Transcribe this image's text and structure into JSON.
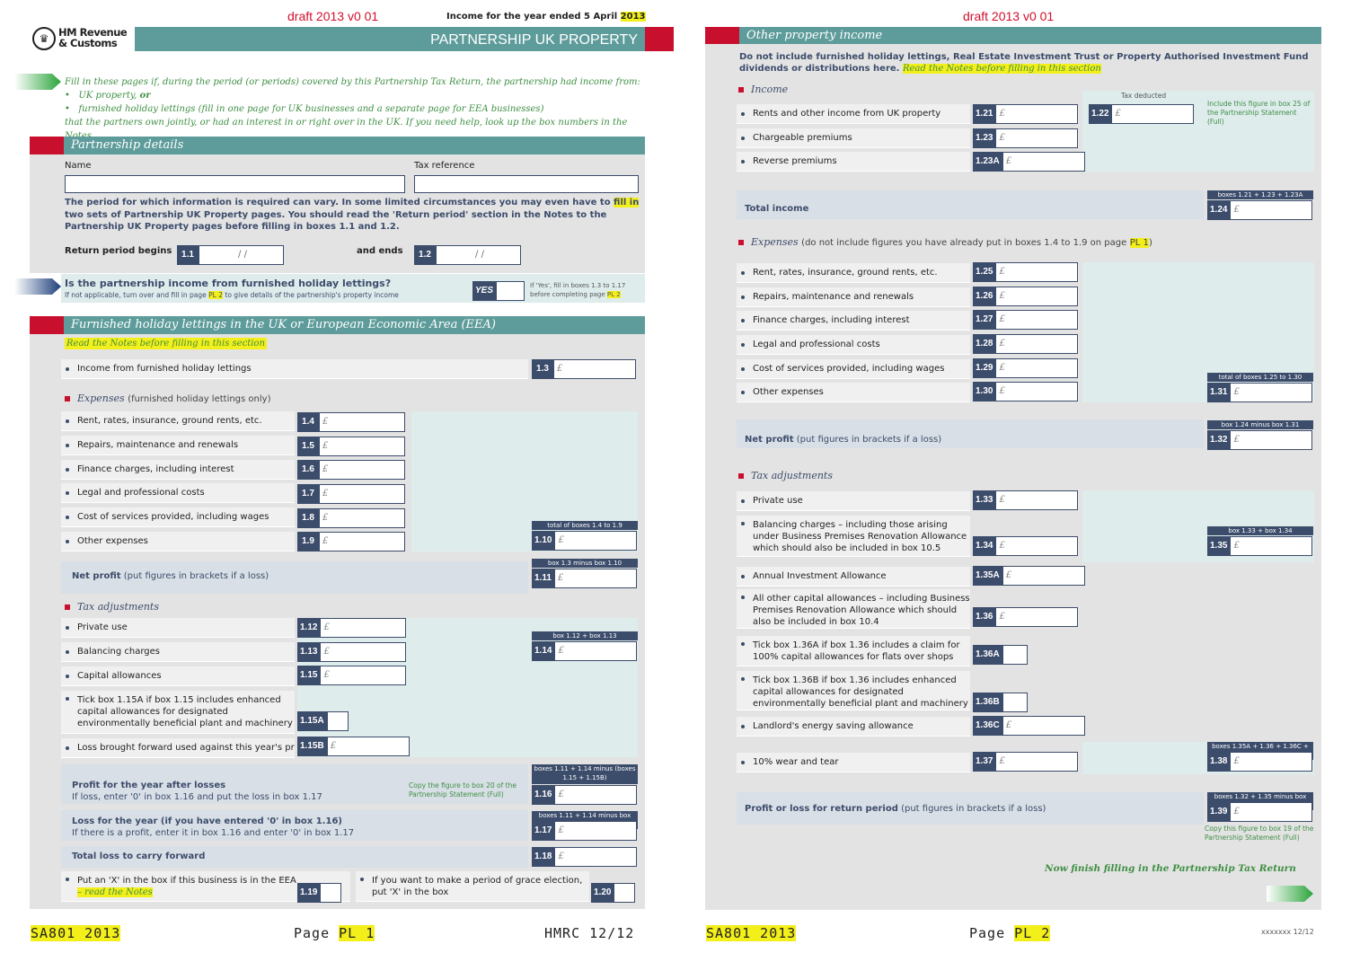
{
  "p1": {
    "draft": "draft 2013 v0 01",
    "year_text": "Income for the year ended 5 April",
    "year": "2013",
    "logo_line1": "HM Revenue",
    "logo_line2": "& Customs",
    "title": "PARTNERSHIP UK PROPERTY",
    "intro": "Fill in these pages if, during the period (or periods) covered by this Partnership Tax Return, the partnership had income from:",
    "bullet1": "UK property,",
    "bullet1_or": "or",
    "bullet2": "furnished holiday lettings (fill in one page for UK businesses and a separate page for EEA businesses)",
    "intro2": "that the partners own jointly, or had an interest in or right over in the UK. If you need help, look up the box numbers in the Notes.",
    "details_heading": "Partnership details",
    "name_label": "Name",
    "taxref_label": "Tax reference",
    "period_text_a": "The period for which information is required can vary. In some limited circumstances you may even have to",
    "period_fill": "fill in",
    "period_text_b": "two sets of Partnership UK Property pages. You should read the 'Return period' section in the Notes to the Partnership UK Property pages before filling in boxes 1.1 and 1.2.",
    "begins_label": "Return period begins",
    "ends_label": "and ends",
    "date_slash": "/          /",
    "fhl_q": "Is the partnership income from furnished holiday lettings?",
    "fhl_sub_a": "If not applicable, turn over and fill in page",
    "fhl_sub_pl": "PL 2",
    "fhl_sub_b": "to give details of the partnership's property income",
    "yes": "YES",
    "ifyes_a": "If 'Yes', fill in boxes 1.3 to 1.17",
    "ifyes_b": "before completing page",
    "ifyes_pl": "PL 2",
    "fhl_heading": "Furnished holiday lettings in the UK or European Economic Area (EEA)",
    "read_notes": "Read the Notes before filling in this section",
    "income_fhl": "Income from furnished holiday lettings",
    "expenses_h": "Expenses",
    "expenses_sub": "(furnished holiday lettings only)",
    "e1": "Rent, rates, insurance, ground rents, etc.",
    "e2": "Repairs, maintenance and renewals",
    "e3": "Finance charges, including interest",
    "e4": "Legal and professional costs",
    "e5": "Cost of services provided, including wages",
    "e6": "Other expenses",
    "total_cap": "total of boxes 1.4 to 1.9",
    "net_profit": "Net profit",
    "net_profit_sub": "(put figures in brackets if a loss)",
    "np_cap": "box 1.3 minus box 1.10",
    "tax_adj": "Tax adjustments",
    "t1": "Private use",
    "t2": "Balancing charges",
    "t3": "Capital allowances",
    "t4": "Tick box 1.15A if box 1.15 includes enhanced capital allowances for designated environmentally beneficial plant and machinery",
    "t5": "Loss brought forward used against this year's profits",
    "t_cap": "box 1.12 + box 1.13",
    "profit_after": "Profit for the year after losses",
    "profit_after_sub": "If loss, enter '0' in box 1.16 and put the loss in box 1.17",
    "copy_note": "Copy the figure to box 20 of the Partnership Statement (Full)",
    "p_cap": "boxes 1.11 + 1.14 minus (boxes 1.15 + 1.15B)",
    "loss_year": "Loss for the year (if you have entered '0' in box 1.16)",
    "loss_year_sub": "If there is a profit, enter it in box 1.16 and enter '0' in box 1.17",
    "l_cap": "boxes 1.11 + 1.14 minus box 1.15",
    "total_loss": "Total loss to carry forward",
    "eea_a": "Put an 'X' in the box if this business is in the EEA",
    "eea_b": "– read the Notes",
    "grace": "If you want to make a period of grace election, put 'X' in the box",
    "foot_code": "SA801 2013",
    "foot_page": "Page",
    "foot_pl": "PL 1",
    "foot_hmrc": "HMRC 12/12",
    "pound": "£",
    "labels": {
      "b11": "1.1",
      "b12": "1.2",
      "b13": "1.3",
      "b14": "1.4",
      "b15": "1.5",
      "b16": "1.6",
      "b17": "1.7",
      "b18": "1.8",
      "b19": "1.9",
      "b110": "1.10",
      "b111": "1.11",
      "b112": "1.12",
      "b113": "1.13",
      "b114": "1.14",
      "b115": "1.15",
      "b115a": "1.15A",
      "b115b": "1.15B",
      "b116": "1.16",
      "b117": "1.17",
      "b118": "1.18",
      "b119": "1.19",
      "b120": "1.20"
    }
  },
  "p2": {
    "draft": "draft 2013 v0 01",
    "heading": "Other property income",
    "intro": "Do not include furnished holiday lettings, Real Estate Investment Trust or Property Authorised Investment Fund dividends or distributions here.",
    "read_notes": "Read the Notes before filling in this section",
    "income_h": "Income",
    "tax_deducted": "Tax deducted",
    "include_note": "Include this figure in box 25 of the Partnership Statement (Full)",
    "i1": "Rents and other income from UK property",
    "i2": "Chargeable premiums",
    "i3": "Reverse premiums",
    "total_income": "Total income",
    "ti_cap": "boxes 1.21 + 1.23 + 1.23A",
    "expenses_h": "Expenses",
    "expenses_sub": "(do not include figures you have already put in boxes 1.4 to 1.9 on page",
    "expenses_pl": "PL 1",
    "e1": "Rent, rates, insurance, ground rents, etc.",
    "e2": "Repairs, maintenance and renewals",
    "e3": "Finance charges, including interest",
    "e4": "Legal and professional costs",
    "e5": "Cost of services provided, including wages",
    "e6": "Other expenses",
    "te_cap": "total of boxes 1.25 to 1.30",
    "net_profit": "Net profit",
    "net_profit_sub": "(put figures in brackets if a loss)",
    "np_cap": "box 1.24 minus box 1.31",
    "tax_adj": "Tax adjustments",
    "t1": "Private use",
    "t2": "Balancing charges – including those arising under Business Premises Renovation Allowance which should also be included in box 10.5",
    "t_cap": "box 1.33 + box 1.34",
    "t3": "Annual Investment Allowance",
    "t4": "All other capital allowances – including Business Premises Renovation Allowance which should also be included in box 10.4",
    "t5": "Tick box 1.36A if box 1.36 includes a claim for 100% capital allowances for flats over shops",
    "t6": "Tick box 1.36B if box 1.36 includes enhanced capital allowances for designated environmentally beneficial plant and machinery",
    "t7": "Landlord's energy saving allowance",
    "t8": "10% wear and tear",
    "wt_cap": "boxes 1.35A + 1.36 + 1.36C + 1.37",
    "profit_loss": "Profit or loss for return period",
    "profit_loss_sub": "(put figures in brackets if a loss)",
    "pl_cap": "boxes 1.32 + 1.35 minus box 1.38",
    "copy_note": "Copy this figure to box 19 of the Partnership Statement (Full)",
    "finish": "Now finish filling in the Partnership Tax Return",
    "foot_code": "SA801 2013",
    "foot_page": "Page",
    "foot_pl": "PL 2",
    "foot_hmrc": "xxxxxxx 12/12",
    "pound": "£",
    "labels": {
      "b121": "1.21",
      "b122": "1.22",
      "b123": "1.23",
      "b123a": "1.23A",
      "b124": "1.24",
      "b125": "1.25",
      "b126": "1.26",
      "b127": "1.27",
      "b128": "1.28",
      "b129": "1.29",
      "b130": "1.30",
      "b131": "1.31",
      "b132": "1.32",
      "b133": "1.33",
      "b134": "1.34",
      "b135": "1.35",
      "b135a": "1.35A",
      "b136": "1.36",
      "b136a": "1.36A",
      "b136b": "1.36B",
      "b136c": "1.36C",
      "b137": "1.37",
      "b138": "1.38",
      "b139": "1.39"
    }
  }
}
